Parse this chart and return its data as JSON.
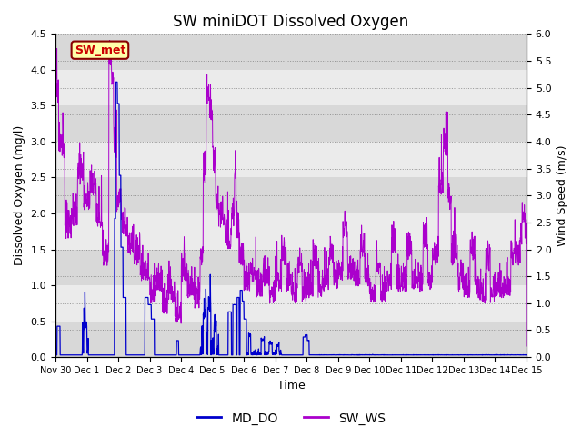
{
  "title": "SW miniDOT Dissolved Oxygen",
  "ylabel_left": "Dissolved Oxygen (mg/l)",
  "ylabel_right": "Wind Speed (m/s)",
  "xlabel": "Time",
  "ylim_left": [
    0,
    4.5
  ],
  "ylim_right": [
    0.0,
    6.0
  ],
  "yticks_left": [
    0.0,
    0.5,
    1.0,
    1.5,
    2.0,
    2.5,
    3.0,
    3.5,
    4.0,
    4.5
  ],
  "yticks_right": [
    0.0,
    0.5,
    1.0,
    1.5,
    2.0,
    2.5,
    3.0,
    3.5,
    4.0,
    4.5,
    5.0,
    5.5,
    6.0
  ],
  "xtick_labels": [
    "Nov 30",
    "Dec 1",
    "Dec 2",
    "Dec 3",
    "Dec 4",
    "Dec 5",
    "Dec 6",
    "Dec 7",
    "Dec 8",
    "Dec 9",
    "Dec 10",
    "Dec 11",
    "Dec 12",
    "Dec 13",
    "Dec 14",
    "Dec 15"
  ],
  "color_do": "#0000cc",
  "color_ws": "#aa00cc",
  "annotation_text": "SW_met",
  "annotation_bg": "#ffffaa",
  "annotation_border": "#880000",
  "annotation_textcolor": "#cc0000",
  "legend_labels": [
    "MD_DO",
    "SW_WS"
  ],
  "band_light": "#ebebeb",
  "band_dark": "#d8d8d8",
  "seed": 42
}
